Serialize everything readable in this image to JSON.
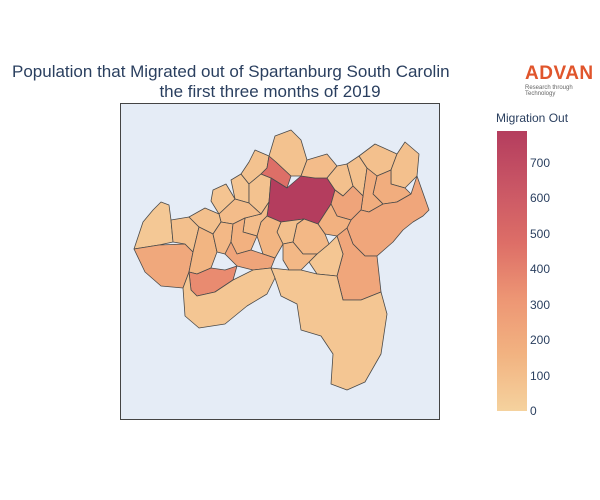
{
  "title": {
    "line1": "Population that Migrated out of Spartanburg South Carolin",
    "line2": "the first three months of 2019"
  },
  "logo": {
    "word": "ADVAN",
    "tagline": "Research through Technology"
  },
  "colorbar": {
    "title": "Migration Out",
    "ticks": [
      "0",
      "100",
      "200",
      "300",
      "400",
      "500",
      "600",
      "700"
    ],
    "min": 0,
    "max": 790,
    "colors": [
      "#f5d29e",
      "#f2b381",
      "#ed9674",
      "#dd6e67",
      "#c95665",
      "#b43d5e"
    ]
  },
  "regions": [
    {
      "id": "center-top",
      "value": 790
    },
    {
      "id": "north-nw",
      "value": 470
    },
    {
      "id": "south-mid",
      "value": 360
    },
    {
      "id": "west-arm",
      "value": 220
    },
    {
      "id": "mid-east",
      "value": 240
    },
    {
      "id": "southeast-large",
      "value": 230
    },
    {
      "id": "east-lobe",
      "value": 190
    },
    {
      "id": "north-top",
      "value": 80
    },
    {
      "id": "ne-far",
      "value": 90
    },
    {
      "id": "nw-top",
      "value": 70
    },
    {
      "id": "south-bottom",
      "value": 60
    },
    {
      "id": "far-west",
      "value": 50
    },
    {
      "id": "center-1",
      "value": 110
    },
    {
      "id": "center-2",
      "value": 150
    },
    {
      "id": "center-3",
      "value": 130
    },
    {
      "id": "center-4",
      "value": 170
    },
    {
      "id": "center-5",
      "value": 90
    },
    {
      "id": "south-center",
      "value": 60
    }
  ]
}
